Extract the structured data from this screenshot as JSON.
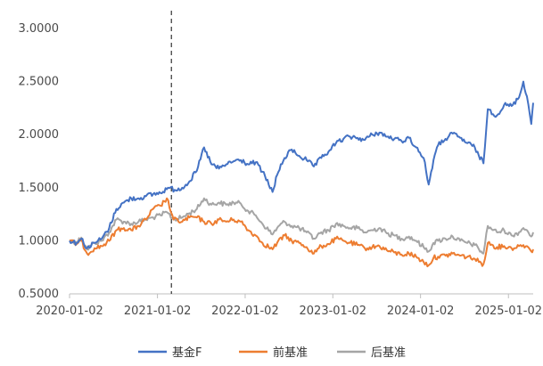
{
  "chart_data": {
    "type": "line",
    "title": "",
    "xlabel": "",
    "ylabel": "",
    "x_tick_labels": [
      "2020-01-02",
      "2021-01-02",
      "2022-01-02",
      "2023-01-02",
      "2024-01-02",
      "2025-01-02"
    ],
    "y_tick_labels": [
      "0.5000",
      "1.0000",
      "1.5000",
      "2.0000",
      "2.5000",
      "3.0000"
    ],
    "ylim": [
      0.5,
      3.0
    ],
    "xlim": [
      "2020-01-02",
      "2025-04-15"
    ],
    "grid": false,
    "legend_position": "bottom",
    "vertical_reference_line": {
      "x": "2021-03-01",
      "style": "dashed"
    },
    "series": [
      {
        "name": "基金F",
        "color": "#4472C4",
        "points": [
          [
            "2020-01-02",
            1.0
          ],
          [
            "2020-02-01",
            0.98
          ],
          [
            "2020-02-20",
            1.02
          ],
          [
            "2020-03-15",
            0.93
          ],
          [
            "2020-04-15",
            0.98
          ],
          [
            "2020-05-15",
            1.02
          ],
          [
            "2020-06-15",
            1.12
          ],
          [
            "2020-07-15",
            1.3
          ],
          [
            "2020-08-15",
            1.36
          ],
          [
            "2020-09-15",
            1.4
          ],
          [
            "2020-10-15",
            1.4
          ],
          [
            "2020-11-15",
            1.42
          ],
          [
            "2020-12-15",
            1.44
          ],
          [
            "2021-01-15",
            1.45
          ],
          [
            "2021-02-15",
            1.5
          ],
          [
            "2021-03-15",
            1.48
          ],
          [
            "2021-04-15",
            1.5
          ],
          [
            "2021-05-15",
            1.56
          ],
          [
            "2021-06-15",
            1.66
          ],
          [
            "2021-07-15",
            1.88
          ],
          [
            "2021-08-15",
            1.72
          ],
          [
            "2021-09-15",
            1.68
          ],
          [
            "2021-10-15",
            1.72
          ],
          [
            "2021-11-15",
            1.75
          ],
          [
            "2021-12-15",
            1.76
          ],
          [
            "2022-01-15",
            1.72
          ],
          [
            "2022-02-15",
            1.74
          ],
          [
            "2022-03-15",
            1.65
          ],
          [
            "2022-04-26",
            1.46
          ],
          [
            "2022-05-15",
            1.62
          ],
          [
            "2022-06-15",
            1.78
          ],
          [
            "2022-07-15",
            1.86
          ],
          [
            "2022-08-15",
            1.8
          ],
          [
            "2022-09-15",
            1.76
          ],
          [
            "2022-10-15",
            1.7
          ],
          [
            "2022-11-15",
            1.78
          ],
          [
            "2022-12-15",
            1.84
          ],
          [
            "2023-01-15",
            1.92
          ],
          [
            "2023-02-15",
            1.96
          ],
          [
            "2023-03-15",
            1.98
          ],
          [
            "2023-04-15",
            1.97
          ],
          [
            "2023-05-15",
            1.95
          ],
          [
            "2023-06-15",
            2.0
          ],
          [
            "2023-07-15",
            2.02
          ],
          [
            "2023-08-15",
            1.98
          ],
          [
            "2023-09-15",
            1.96
          ],
          [
            "2023-10-15",
            1.94
          ],
          [
            "2023-11-15",
            1.97
          ],
          [
            "2023-12-15",
            1.88
          ],
          [
            "2024-01-15",
            1.78
          ],
          [
            "2024-02-05",
            1.53
          ],
          [
            "2024-02-25",
            1.76
          ],
          [
            "2024-03-15",
            1.9
          ],
          [
            "2024-04-15",
            1.96
          ],
          [
            "2024-05-15",
            2.01
          ],
          [
            "2024-06-15",
            1.97
          ],
          [
            "2024-07-15",
            1.92
          ],
          [
            "2024-08-15",
            1.88
          ],
          [
            "2024-09-01",
            1.8
          ],
          [
            "2024-09-20",
            1.73
          ],
          [
            "2024-10-08",
            2.24
          ],
          [
            "2024-11-15",
            2.18
          ],
          [
            "2024-12-15",
            2.28
          ],
          [
            "2025-01-15",
            2.27
          ],
          [
            "2025-02-15",
            2.35
          ],
          [
            "2025-03-05",
            2.5
          ],
          [
            "2025-03-20",
            2.36
          ],
          [
            "2025-04-07",
            2.1
          ],
          [
            "2025-04-15",
            2.3
          ]
        ]
      },
      {
        "name": "前基准",
        "color": "#ED7D31",
        "points": [
          [
            "2020-01-02",
            1.0
          ],
          [
            "2020-02-01",
            0.97
          ],
          [
            "2020-02-20",
            1.0
          ],
          [
            "2020-03-15",
            0.88
          ],
          [
            "2020-04-15",
            0.93
          ],
          [
            "2020-05-15",
            0.95
          ],
          [
            "2020-06-15",
            1.0
          ],
          [
            "2020-07-15",
            1.1
          ],
          [
            "2020-08-15",
            1.12
          ],
          [
            "2020-09-15",
            1.1
          ],
          [
            "2020-10-15",
            1.14
          ],
          [
            "2020-11-15",
            1.2
          ],
          [
            "2020-12-15",
            1.3
          ],
          [
            "2021-01-15",
            1.33
          ],
          [
            "2021-02-10",
            1.4
          ],
          [
            "2021-03-10",
            1.2
          ],
          [
            "2021-04-15",
            1.18
          ],
          [
            "2021-05-15",
            1.22
          ],
          [
            "2021-06-15",
            1.22
          ],
          [
            "2021-07-15",
            1.18
          ],
          [
            "2021-08-15",
            1.16
          ],
          [
            "2021-09-15",
            1.2
          ],
          [
            "2021-10-15",
            1.18
          ],
          [
            "2021-11-15",
            1.2
          ],
          [
            "2021-12-15",
            1.18
          ],
          [
            "2022-01-15",
            1.1
          ],
          [
            "2022-02-15",
            1.05
          ],
          [
            "2022-03-15",
            0.98
          ],
          [
            "2022-04-26",
            0.92
          ],
          [
            "2022-05-15",
            0.98
          ],
          [
            "2022-06-15",
            1.05
          ],
          [
            "2022-07-15",
            1.0
          ],
          [
            "2022-08-15",
            0.98
          ],
          [
            "2022-09-15",
            0.94
          ],
          [
            "2022-10-15",
            0.88
          ],
          [
            "2022-11-15",
            0.95
          ],
          [
            "2022-12-15",
            0.97
          ],
          [
            "2023-01-15",
            1.02
          ],
          [
            "2023-02-15",
            1.0
          ],
          [
            "2023-03-15",
            0.98
          ],
          [
            "2023-04-15",
            0.96
          ],
          [
            "2023-05-15",
            0.93
          ],
          [
            "2023-06-15",
            0.94
          ],
          [
            "2023-07-15",
            0.95
          ],
          [
            "2023-08-15",
            0.91
          ],
          [
            "2023-09-15",
            0.89
          ],
          [
            "2023-10-15",
            0.87
          ],
          [
            "2023-11-15",
            0.88
          ],
          [
            "2023-12-15",
            0.85
          ],
          [
            "2024-01-15",
            0.8
          ],
          [
            "2024-02-05",
            0.77
          ],
          [
            "2024-02-25",
            0.84
          ],
          [
            "2024-03-15",
            0.85
          ],
          [
            "2024-04-15",
            0.86
          ],
          [
            "2024-05-15",
            0.88
          ],
          [
            "2024-06-15",
            0.86
          ],
          [
            "2024-07-15",
            0.85
          ],
          [
            "2024-08-15",
            0.83
          ],
          [
            "2024-09-01",
            0.8
          ],
          [
            "2024-09-20",
            0.78
          ],
          [
            "2024-10-08",
            0.98
          ],
          [
            "2024-11-15",
            0.94
          ],
          [
            "2024-12-15",
            0.95
          ],
          [
            "2025-01-15",
            0.93
          ],
          [
            "2025-02-15",
            0.95
          ],
          [
            "2025-03-05",
            0.96
          ],
          [
            "2025-03-20",
            0.95
          ],
          [
            "2025-04-07",
            0.9
          ],
          [
            "2025-04-15",
            0.92
          ]
        ]
      },
      {
        "name": "后基准",
        "color": "#A5A5A5",
        "points": [
          [
            "2020-01-02",
            1.0
          ],
          [
            "2020-02-01",
            0.99
          ],
          [
            "2020-02-20",
            1.03
          ],
          [
            "2020-03-15",
            0.92
          ],
          [
            "2020-04-15",
            0.98
          ],
          [
            "2020-05-15",
            1.0
          ],
          [
            "2020-06-15",
            1.08
          ],
          [
            "2020-07-15",
            1.2
          ],
          [
            "2020-08-15",
            1.18
          ],
          [
            "2020-09-15",
            1.16
          ],
          [
            "2020-10-15",
            1.18
          ],
          [
            "2020-11-15",
            1.2
          ],
          [
            "2020-12-15",
            1.22
          ],
          [
            "2021-01-15",
            1.24
          ],
          [
            "2021-02-10",
            1.27
          ],
          [
            "2021-03-10",
            1.2
          ],
          [
            "2021-04-15",
            1.22
          ],
          [
            "2021-05-15",
            1.26
          ],
          [
            "2021-06-15",
            1.3
          ],
          [
            "2021-07-15",
            1.4
          ],
          [
            "2021-08-15",
            1.34
          ],
          [
            "2021-09-15",
            1.36
          ],
          [
            "2021-10-15",
            1.34
          ],
          [
            "2021-11-15",
            1.36
          ],
          [
            "2021-12-15",
            1.35
          ],
          [
            "2022-01-15",
            1.28
          ],
          [
            "2022-02-15",
            1.24
          ],
          [
            "2022-03-15",
            1.16
          ],
          [
            "2022-04-26",
            1.06
          ],
          [
            "2022-05-15",
            1.12
          ],
          [
            "2022-06-15",
            1.18
          ],
          [
            "2022-07-15",
            1.14
          ],
          [
            "2022-08-15",
            1.12
          ],
          [
            "2022-09-15",
            1.08
          ],
          [
            "2022-10-15",
            1.02
          ],
          [
            "2022-11-15",
            1.08
          ],
          [
            "2022-12-15",
            1.1
          ],
          [
            "2023-01-15",
            1.16
          ],
          [
            "2023-02-15",
            1.14
          ],
          [
            "2023-03-15",
            1.12
          ],
          [
            "2023-04-15",
            1.12
          ],
          [
            "2023-05-15",
            1.08
          ],
          [
            "2023-06-15",
            1.1
          ],
          [
            "2023-07-15",
            1.12
          ],
          [
            "2023-08-15",
            1.07
          ],
          [
            "2023-09-15",
            1.05
          ],
          [
            "2023-10-15",
            1.02
          ],
          [
            "2023-11-15",
            1.04
          ],
          [
            "2023-12-15",
            1.0
          ],
          [
            "2024-01-15",
            0.94
          ],
          [
            "2024-02-05",
            0.9
          ],
          [
            "2024-02-25",
            0.98
          ],
          [
            "2024-03-15",
            1.0
          ],
          [
            "2024-04-15",
            1.02
          ],
          [
            "2024-05-15",
            1.04
          ],
          [
            "2024-06-15",
            1.0
          ],
          [
            "2024-07-15",
            0.98
          ],
          [
            "2024-08-15",
            0.96
          ],
          [
            "2024-09-01",
            0.92
          ],
          [
            "2024-09-20",
            0.88
          ],
          [
            "2024-10-08",
            1.14
          ],
          [
            "2024-11-15",
            1.08
          ],
          [
            "2024-12-15",
            1.1
          ],
          [
            "2025-01-15",
            1.05
          ],
          [
            "2025-02-15",
            1.08
          ],
          [
            "2025-03-05",
            1.12
          ],
          [
            "2025-03-20",
            1.1
          ],
          [
            "2025-04-07",
            1.04
          ],
          [
            "2025-04-15",
            1.08
          ]
        ]
      }
    ]
  }
}
